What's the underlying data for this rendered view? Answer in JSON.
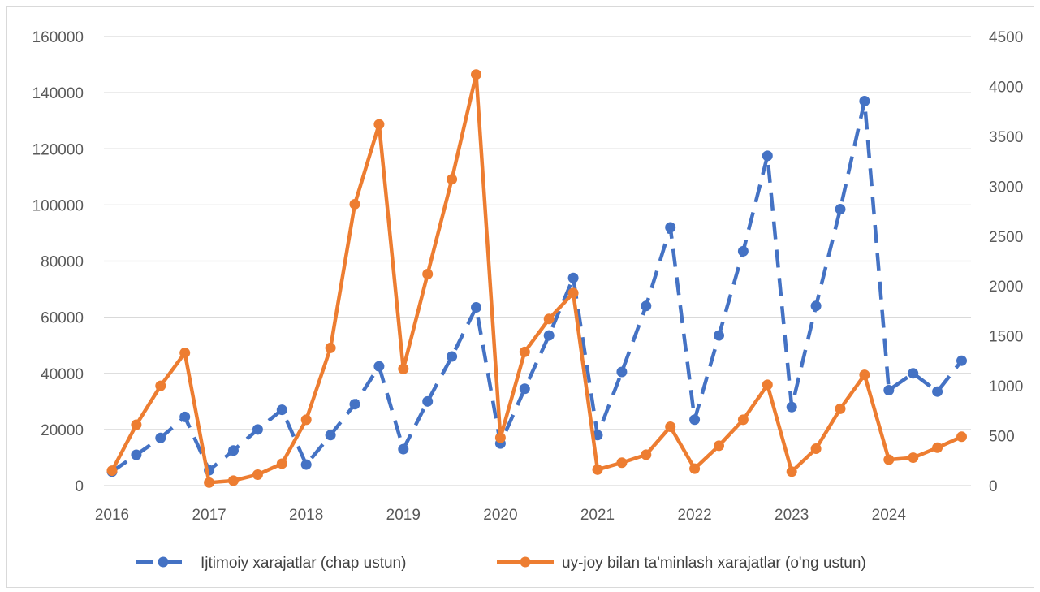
{
  "chart_data": {
    "type": "line",
    "title": "",
    "x_tick_labels": [
      "2016",
      "2017",
      "2018",
      "2019",
      "2020",
      "2021",
      "2022",
      "2023",
      "2024"
    ],
    "x": [
      "2016 Q1",
      "2016 Q2",
      "2016 Q3",
      "2016 Q4",
      "2017 Q1",
      "2017 Q2",
      "2017 Q3",
      "2017 Q4",
      "2018 Q1",
      "2018 Q2",
      "2018 Q3",
      "2018 Q4",
      "2019 Q1",
      "2019 Q2",
      "2019 Q3",
      "2019 Q4",
      "2020 Q1",
      "2020 Q2",
      "2020 Q3",
      "2020 Q4",
      "2021 Q1",
      "2021 Q2",
      "2021 Q3",
      "2021 Q4",
      "2022 Q1",
      "2022 Q2",
      "2022 Q3",
      "2022 Q4",
      "2023 Q1",
      "2023 Q2",
      "2023 Q3",
      "2023 Q4",
      "2024 Q1",
      "2024 Q2",
      "2024 Q3",
      "2024 Q4"
    ],
    "y_left": {
      "ylim": [
        0,
        160000
      ],
      "ticks": [
        "0",
        "20000",
        "40000",
        "60000",
        "80000",
        "100000",
        "120000",
        "140000",
        "160000"
      ]
    },
    "y_right": {
      "ylim": [
        0,
        4500
      ],
      "ticks": [
        "0",
        "500",
        "1000",
        "1500",
        "2000",
        "2500",
        "3000",
        "3500",
        "4000",
        "4500"
      ]
    },
    "grid": true,
    "legend_position": "bottom",
    "series": [
      {
        "name": "Ijtimoiy xarajatlar (chap ustun)",
        "axis": "left",
        "color": "#4472C4",
        "line_style": "dashed",
        "values": [
          5000,
          11000,
          17000,
          24500,
          5500,
          12500,
          20000,
          27000,
          7500,
          18000,
          29000,
          42500,
          13000,
          30000,
          46000,
          63500,
          15000,
          34500,
          53500,
          74000,
          18000,
          40500,
          64000,
          92000,
          23500,
          53500,
          83500,
          117500,
          28000,
          64000,
          98500,
          137000,
          34000,
          40000,
          33500,
          44500
        ]
      },
      {
        "name": "uy-joy bilan ta'minlash xarajatlar (o'ng ustun)",
        "axis": "right",
        "color": "#ED7D31",
        "line_style": "solid",
        "values": [
          150,
          610,
          1000,
          1330,
          30,
          50,
          110,
          220,
          660,
          1380,
          2820,
          3620,
          1170,
          2120,
          3070,
          4120,
          480,
          1340,
          1670,
          1930,
          160,
          230,
          310,
          590,
          170,
          400,
          660,
          1010,
          140,
          370,
          770,
          1110,
          260,
          280,
          380,
          490
        ]
      }
    ]
  }
}
